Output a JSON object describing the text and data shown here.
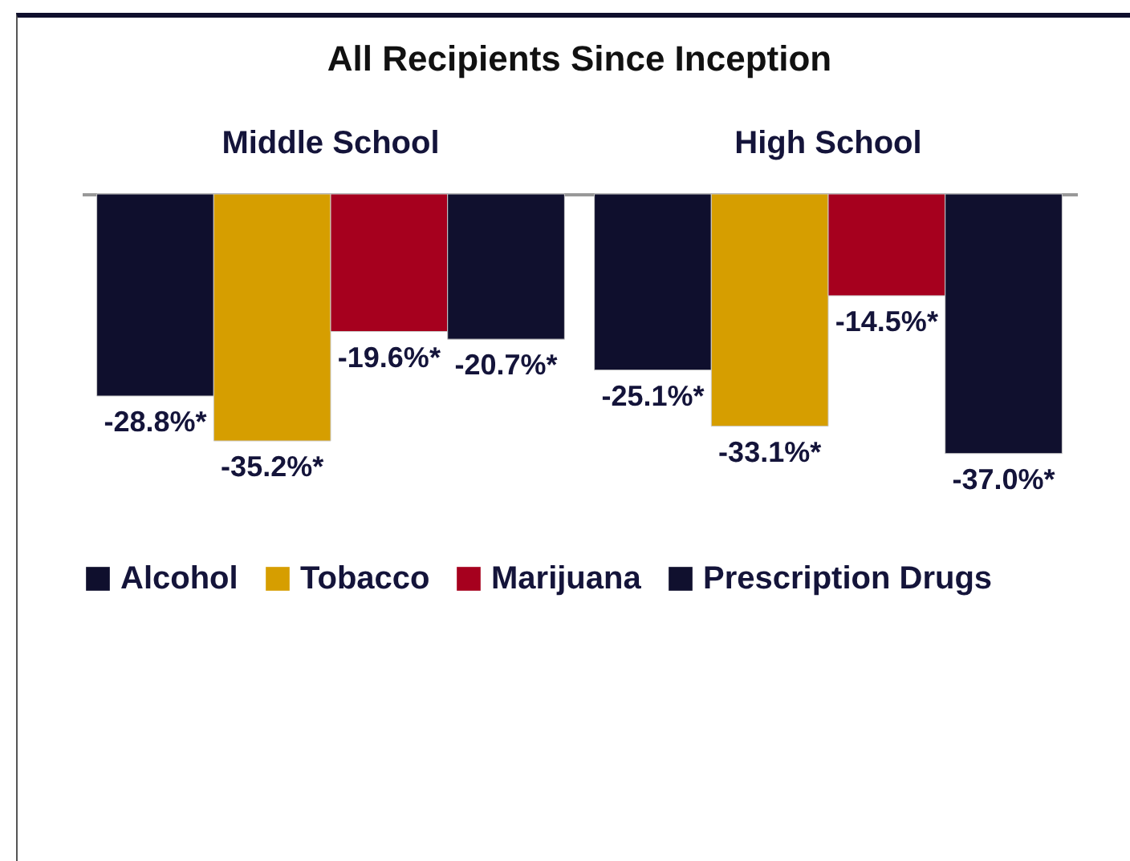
{
  "chart_data": {
    "type": "bar",
    "title": "All Recipients Since Inception",
    "categories": [
      "Middle School",
      "High School"
    ],
    "series": [
      {
        "name": "Alcohol",
        "color": "#0f0f2d",
        "values": [
          -28.8,
          -25.1
        ],
        "value_labels": [
          "-28.8%*",
          "-25.1%*"
        ]
      },
      {
        "name": "Tobacco",
        "color": "#d69e00",
        "values": [
          -35.2,
          -33.1
        ],
        "value_labels": [
          "-35.2%*",
          "-33.1%*"
        ]
      },
      {
        "name": "Marijuana",
        "color": "#a6001e",
        "values": [
          -19.6,
          -14.5
        ],
        "value_labels": [
          "-19.6%*",
          "-14.5%*"
        ]
      },
      {
        "name": "Prescription Drugs",
        "color": "#10102e",
        "values": [
          -20.7,
          -37.0
        ],
        "value_labels": [
          "-20.7%*",
          "-37.0%*"
        ]
      }
    ],
    "grid": false,
    "legend": "bottom"
  }
}
